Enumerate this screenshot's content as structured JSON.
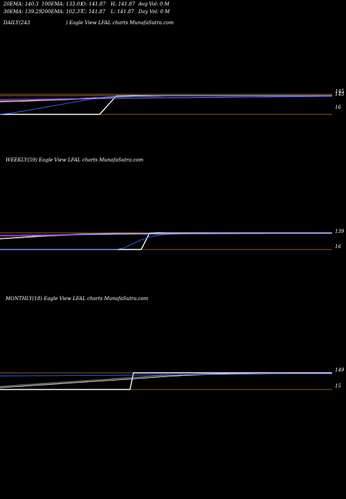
{
  "header": {
    "row1": [
      "20EMA: 140.3",
      "100EMA: 133.01",
      "O: 141.87",
      "H: 141.87",
      "Avg Vol: 0  M"
    ],
    "row2": [
      "30EMA: 139.29",
      "200EMA: 102.37",
      "C: 141.87",
      "L: 141.87",
      "Day Vol: 0  M"
    ]
  },
  "panels": [
    {
      "period": "DAILY(243",
      "title": " ) Eagle  View  LFAL  charts MunafaSutra.com",
      "right_labels": [
        "145",
        "143",
        "16"
      ]
    },
    {
      "period": "WEEKLY(59) Eagle  View  LFAL  charts MunafaSutra.com",
      "title": "",
      "right_labels": [
        "139",
        "16"
      ]
    },
    {
      "period": "MONTHLY(18) Eagle  View  LFAL  charts MunafaSutra.com",
      "title": "",
      "right_labels": [
        "149",
        "15"
      ]
    }
  ],
  "chart_data": [
    {
      "type": "line",
      "title": "DAILY(243 ) Eagle  View  LFAL  charts MunafaSutra.com",
      "y_ref_labels": [
        "145",
        "143",
        "16"
      ],
      "series": [
        {
          "values": [
            16,
            16,
            16,
            16,
            16,
            16,
            16,
            141,
            143,
            142,
            142,
            142,
            142,
            142,
            142,
            142,
            142,
            142,
            142,
            142,
            142
          ],
          "color": "#ffffff"
        },
        {
          "values": [
            104,
            106,
            110,
            114,
            118,
            124,
            130,
            136,
            139,
            140,
            140,
            141,
            141,
            141,
            141,
            141,
            141,
            141,
            141,
            141,
            142
          ],
          "color": "#ffffff"
        },
        {
          "values": [
            100,
            103,
            107,
            111,
            115,
            121,
            127,
            133,
            137,
            139,
            140,
            140,
            141,
            141,
            141,
            141,
            141,
            141,
            141,
            141,
            141
          ],
          "color": "#aaaaaa"
        },
        {
          "values": [
            16,
            30,
            50,
            70,
            90,
            110,
            130,
            138,
            139,
            139,
            140,
            140,
            140,
            140,
            140,
            140,
            140,
            140,
            140,
            140,
            141
          ],
          "color": "#3366ff"
        },
        {
          "values": [
            110,
            112,
            114,
            116,
            118,
            120,
            122,
            124,
            126,
            128,
            129,
            130,
            131,
            132,
            133,
            134,
            135,
            136,
            137,
            138,
            139
          ],
          "color": "#ff33cc"
        },
        {
          "values": [
            118,
            119,
            120,
            121,
            122,
            123,
            124,
            125,
            126,
            127,
            128,
            129,
            130,
            131,
            132,
            133,
            134,
            135,
            136,
            137,
            138
          ],
          "color": "#6666ff"
        }
      ]
    },
    {
      "type": "line",
      "title": "WEEKLY(59) Eagle  View  LFAL  charts MunafaSutra.com",
      "y_ref_labels": [
        "139",
        "16"
      ],
      "series": [
        {
          "values": [
            16,
            16,
            16,
            16,
            16,
            16,
            16,
            16,
            16,
            16,
            16,
            16,
            16,
            16,
            16,
            16,
            16,
            16,
            140,
            143,
            142,
            142,
            142,
            142,
            142,
            142,
            142,
            142,
            142,
            142,
            142,
            142,
            142,
            142,
            142,
            142,
            142,
            142,
            142,
            142,
            142
          ],
          "color": "#ffffff"
        },
        {
          "values": [
            100,
            104,
            108,
            112,
            116,
            120,
            124,
            127,
            130,
            132,
            134,
            135,
            136,
            137,
            138,
            138,
            139,
            139,
            139,
            140,
            140,
            140,
            140,
            141,
            141,
            141,
            141,
            141,
            141,
            141,
            141,
            141,
            141,
            141,
            141,
            141,
            141,
            141,
            141,
            141,
            142
          ],
          "color": "#ffffff"
        },
        {
          "values": [
            95,
            99,
            103,
            107,
            111,
            115,
            119,
            122,
            125,
            128,
            130,
            132,
            133,
            134,
            135,
            136,
            136,
            137,
            137,
            138,
            138,
            138,
            139,
            139,
            139,
            139,
            139,
            139,
            139,
            139,
            139,
            139,
            139,
            139,
            139,
            139,
            139,
            139,
            139,
            139,
            139
          ],
          "color": "#aaaaaa"
        },
        {
          "values": [
            16,
            16,
            16,
            16,
            16,
            16,
            16,
            16,
            16,
            16,
            16,
            16,
            16,
            16,
            16,
            30,
            60,
            90,
            110,
            125,
            130,
            132,
            134,
            135,
            136,
            136,
            137,
            137,
            137,
            138,
            138,
            138,
            138,
            138,
            138,
            138,
            138,
            138,
            138,
            138,
            139
          ],
          "color": "#3366ff"
        },
        {
          "values": [
            118,
            119,
            120,
            121,
            122,
            123,
            124,
            125,
            126,
            127,
            128,
            129,
            130,
            130,
            131,
            131,
            132,
            132,
            133,
            133,
            134,
            134,
            135,
            135,
            135,
            136,
            136,
            136,
            136,
            137,
            137,
            137,
            137,
            137,
            137,
            137,
            137,
            138,
            138,
            138,
            138
          ],
          "color": "#ff33cc"
        },
        {
          "values": [
            125,
            126,
            126,
            127,
            127,
            128,
            128,
            129,
            129,
            130,
            130,
            131,
            131,
            131,
            132,
            132,
            132,
            133,
            133,
            133,
            134,
            134,
            134,
            135,
            135,
            135,
            135,
            136,
            136,
            136,
            136,
            136,
            137,
            137,
            137,
            137,
            137,
            137,
            137,
            137,
            137
          ],
          "color": "#6666ff"
        }
      ]
    },
    {
      "type": "line",
      "title": "MONTHLY(18) Eagle  View  LFAL  charts MunafaSutra.com",
      "y_ref_labels": [
        "149",
        "15"
      ],
      "series": [
        {
          "values": [
            15,
            15,
            15,
            15,
            15,
            15,
            15,
            15,
            15,
            15,
            15,
            15,
            15,
            15,
            15,
            15,
            15,
            15,
            15,
            15,
            15,
            15,
            15,
            15,
            15,
            15,
            15,
            15,
            15,
            15,
            15,
            15,
            15,
            15,
            15,
            15,
            15,
            150,
            150,
            150,
            150,
            150,
            150,
            150,
            150,
            150,
            150,
            150,
            150,
            150,
            150,
            150,
            150,
            150,
            150,
            150,
            150,
            150,
            150,
            150,
            150,
            150,
            150,
            150,
            150,
            150,
            150,
            150,
            150,
            150,
            150,
            150,
            150,
            150,
            150,
            150,
            150,
            150,
            150,
            150,
            150,
            150,
            150,
            150,
            150,
            150,
            150,
            150,
            150,
            150,
            150,
            150,
            150
          ],
          "color": "#ffffff"
        },
        {
          "values": [
            30,
            40,
            50,
            60,
            70,
            80,
            90,
            100,
            110,
            120,
            130,
            135,
            140,
            145,
            147,
            148,
            149,
            149,
            149
          ],
          "color": "#ffffff"
        },
        {
          "values": [
            40,
            50,
            60,
            70,
            80,
            90,
            100,
            110,
            120,
            130,
            135,
            140,
            143,
            145,
            146,
            147,
            148,
            148,
            148
          ],
          "color": "#aaaaaa"
        },
        {
          "values": [
            125,
            126,
            127,
            128,
            129,
            130,
            131,
            132,
            133,
            134,
            135,
            136,
            137,
            138,
            139,
            140,
            141,
            141,
            142
          ],
          "color": "#3366ff"
        }
      ]
    }
  ]
}
